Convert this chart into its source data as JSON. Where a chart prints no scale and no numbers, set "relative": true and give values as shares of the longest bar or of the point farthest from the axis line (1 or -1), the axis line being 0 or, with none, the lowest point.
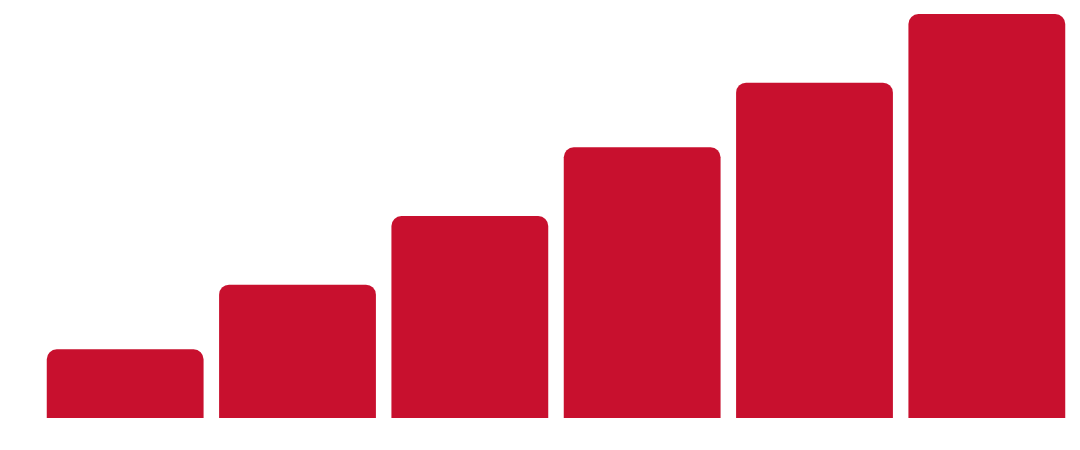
{
  "chart_data": {
    "type": "bar",
    "relative": true,
    "categories": [
      null,
      null,
      null,
      null,
      null,
      null
    ],
    "values": [
      0.17,
      0.33,
      0.5,
      0.67,
      0.83,
      1
    ],
    "color": "#c8102e",
    "legend": false
  }
}
